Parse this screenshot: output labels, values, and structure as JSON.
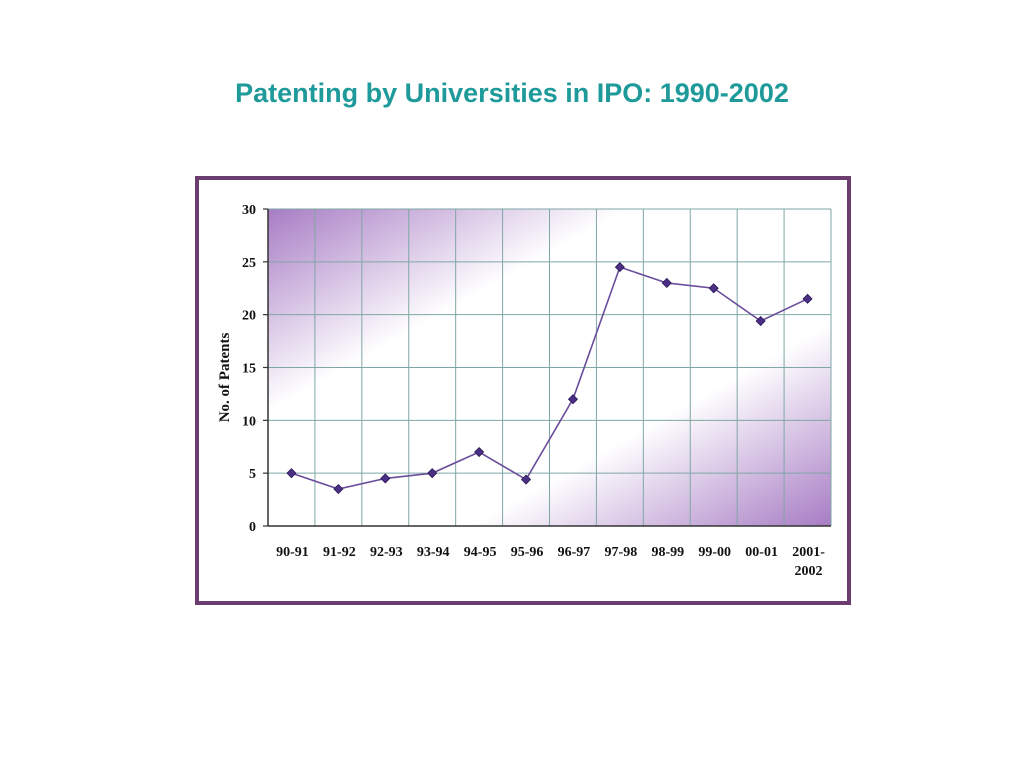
{
  "title": "Patenting by Universities in IPO: 1990-2002",
  "colors": {
    "title": "#1f9a9a",
    "frame": "#6a3d6e",
    "line": "#6a4c9c",
    "marker": "#4b2f86",
    "grid": "#7fa6a6",
    "band": "#a77cc4"
  },
  "chart_data": {
    "type": "line",
    "title": "",
    "xlabel": "",
    "ylabel": "No. of Patents",
    "ylim": [
      0,
      30
    ],
    "yticks": [
      0,
      5,
      10,
      15,
      20,
      25,
      30
    ],
    "grid": true,
    "legend": "none",
    "categories": [
      "90-91",
      "91-92",
      "92-93",
      "93-94",
      "94-95",
      "95-96",
      "96-97",
      "97-98",
      "98-99",
      "99-00",
      "00-01",
      "2001-2002"
    ],
    "category_labels": [
      [
        "90-91"
      ],
      [
        "91-92"
      ],
      [
        "92-93"
      ],
      [
        "93-94"
      ],
      [
        "94-95"
      ],
      [
        "95-96"
      ],
      [
        "96-97"
      ],
      [
        "97-98"
      ],
      [
        "98-99"
      ],
      [
        "99-00"
      ],
      [
        "00-01"
      ],
      [
        "2001-",
        "2002"
      ]
    ],
    "series": [
      {
        "values": [
          5,
          3.5,
          4.5,
          5,
          7,
          4.4,
          12,
          24.5,
          23,
          22.5,
          19.4,
          21.5
        ]
      }
    ]
  }
}
